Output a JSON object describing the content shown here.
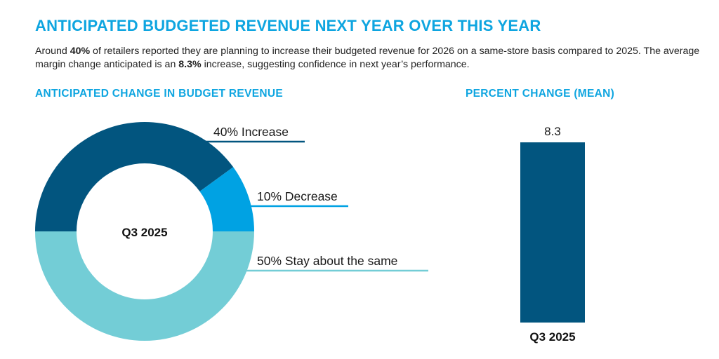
{
  "header": {
    "title": "ANTICIPATED BUDGETED REVENUE NEXT YEAR OVER THIS YEAR",
    "desc_parts": [
      "Around ",
      "40%",
      " of retailers reported they are planning to increase their budgeted revenue for 2026 on a same-store basis compared to 2025. The average margin change anticipated is an ",
      "8.3%",
      " increase, suggesting confidence in next year’s performance."
    ]
  },
  "chart_data": [
    {
      "type": "pie",
      "title": "ANTICIPATED CHANGE IN BUDGET REVENUE",
      "center_label": "Q3 2025",
      "donut": true,
      "slices": [
        {
          "label": "Increase",
          "value": 40,
          "display": "40% Increase",
          "color": "#02557f"
        },
        {
          "label": "Decrease",
          "value": 10,
          "display": "10% Decrease",
          "color": "#00a2e3"
        },
        {
          "label": "Stay about the same",
          "value": 50,
          "display": "50% Stay about the same",
          "color": "#73cdd6"
        }
      ]
    },
    {
      "type": "bar",
      "title": "PERCENT CHANGE (MEAN)",
      "categories": [
        "Q3 2025"
      ],
      "values": [
        8.3
      ],
      "value_labels": [
        "8.3"
      ],
      "color": "#02557f",
      "xlabel": "",
      "ylabel": "",
      "ylim": [
        0,
        8.3
      ],
      "grid": false
    }
  ]
}
